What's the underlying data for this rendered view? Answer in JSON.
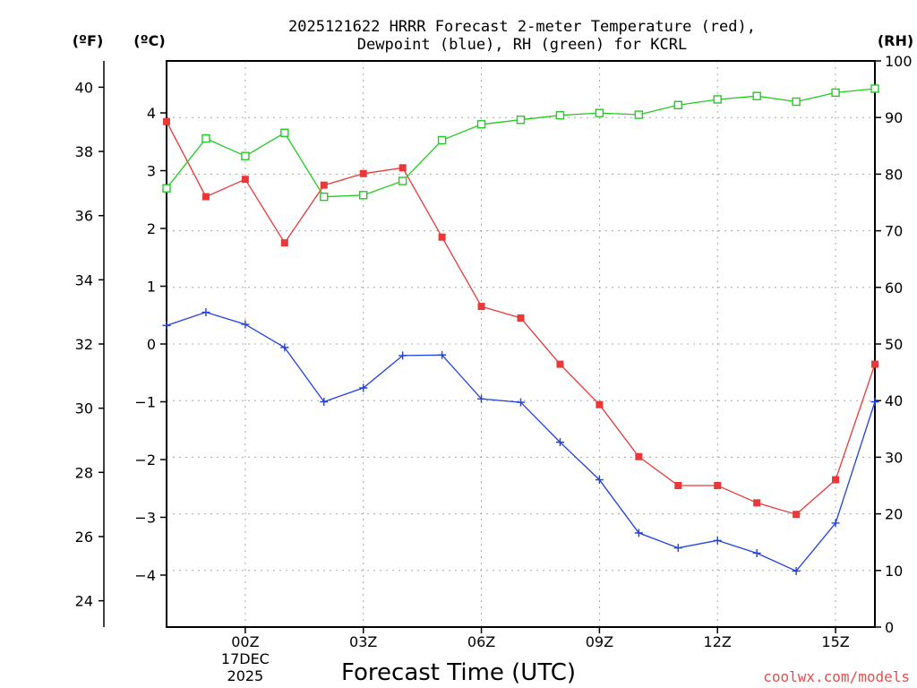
{
  "chart_data": {
    "type": "line",
    "title_line1": "2025121622 HRRR Forecast 2-meter Temperature (red),",
    "title_line2": "Dewpoint (blue), RH (green) for KCRL",
    "xlabel": "Forecast Time (UTC)",
    "credit": "coolwx.com/models",
    "unit_f": "(ºF)",
    "unit_c": "(ºC)",
    "unit_rh": "(RH)",
    "hours": [
      22,
      23,
      24,
      25,
      26,
      27,
      28,
      29,
      30,
      31,
      32,
      33,
      34,
      35,
      36,
      37,
      38,
      39,
      40
    ],
    "x_range": [
      22,
      40
    ],
    "x_ticks": [
      {
        "hour": 24,
        "label": "00Z",
        "date1": "17DEC",
        "date2": "2025"
      },
      {
        "hour": 27,
        "label": "03Z"
      },
      {
        "hour": 30,
        "label": "06Z"
      },
      {
        "hour": 33,
        "label": "09Z"
      },
      {
        "hour": 36,
        "label": "12Z"
      },
      {
        "hour": 39,
        "label": "15Z"
      }
    ],
    "ylim_c": [
      -4.9,
      4.9
    ],
    "ylim_rh": [
      0,
      100
    ],
    "ylim_f_visible": [
      23.2,
      40.8
    ],
    "yticks_c": [
      "4",
      "3",
      "2",
      "1",
      "0",
      "−1",
      "−2",
      "−3",
      "−4"
    ],
    "yticks_f": [
      "40",
      "38",
      "36",
      "34",
      "32",
      "30",
      "28",
      "26",
      "24"
    ],
    "yticks_rh": [
      "100",
      "90",
      "80",
      "70",
      "60",
      "50",
      "40",
      "30",
      "20",
      "10",
      "0"
    ],
    "series": [
      {
        "name": "Temperature",
        "color": "#e83838",
        "axis": "c",
        "marker": "filled-square",
        "values": [
          3.85,
          2.55,
          2.85,
          1.75,
          2.75,
          2.95,
          3.05,
          1.85,
          0.65,
          0.45,
          -0.35,
          -1.05,
          -1.95,
          -2.45,
          -2.45,
          -2.75,
          -2.95,
          -2.35,
          -0.35
        ]
      },
      {
        "name": "Dewpoint",
        "color": "#2040e0",
        "axis": "c",
        "marker": "plus",
        "values": [
          0.32,
          0.55,
          0.34,
          -0.06,
          -1.0,
          -0.76,
          -0.2,
          -0.19,
          -0.95,
          -1.01,
          -1.7,
          -2.35,
          -3.27,
          -3.53,
          -3.4,
          -3.62,
          -3.93,
          -3.1,
          -1.0
        ]
      },
      {
        "name": "RH",
        "color": "#20cc20",
        "axis": "rh",
        "marker": "open-square",
        "values": [
          77.5,
          86.3,
          83.2,
          87.3,
          76.0,
          76.3,
          78.8,
          86.0,
          88.8,
          89.6,
          90.4,
          90.8,
          90.5,
          92.2,
          93.2,
          93.8,
          92.8,
          94.4,
          95.1
        ]
      }
    ]
  }
}
